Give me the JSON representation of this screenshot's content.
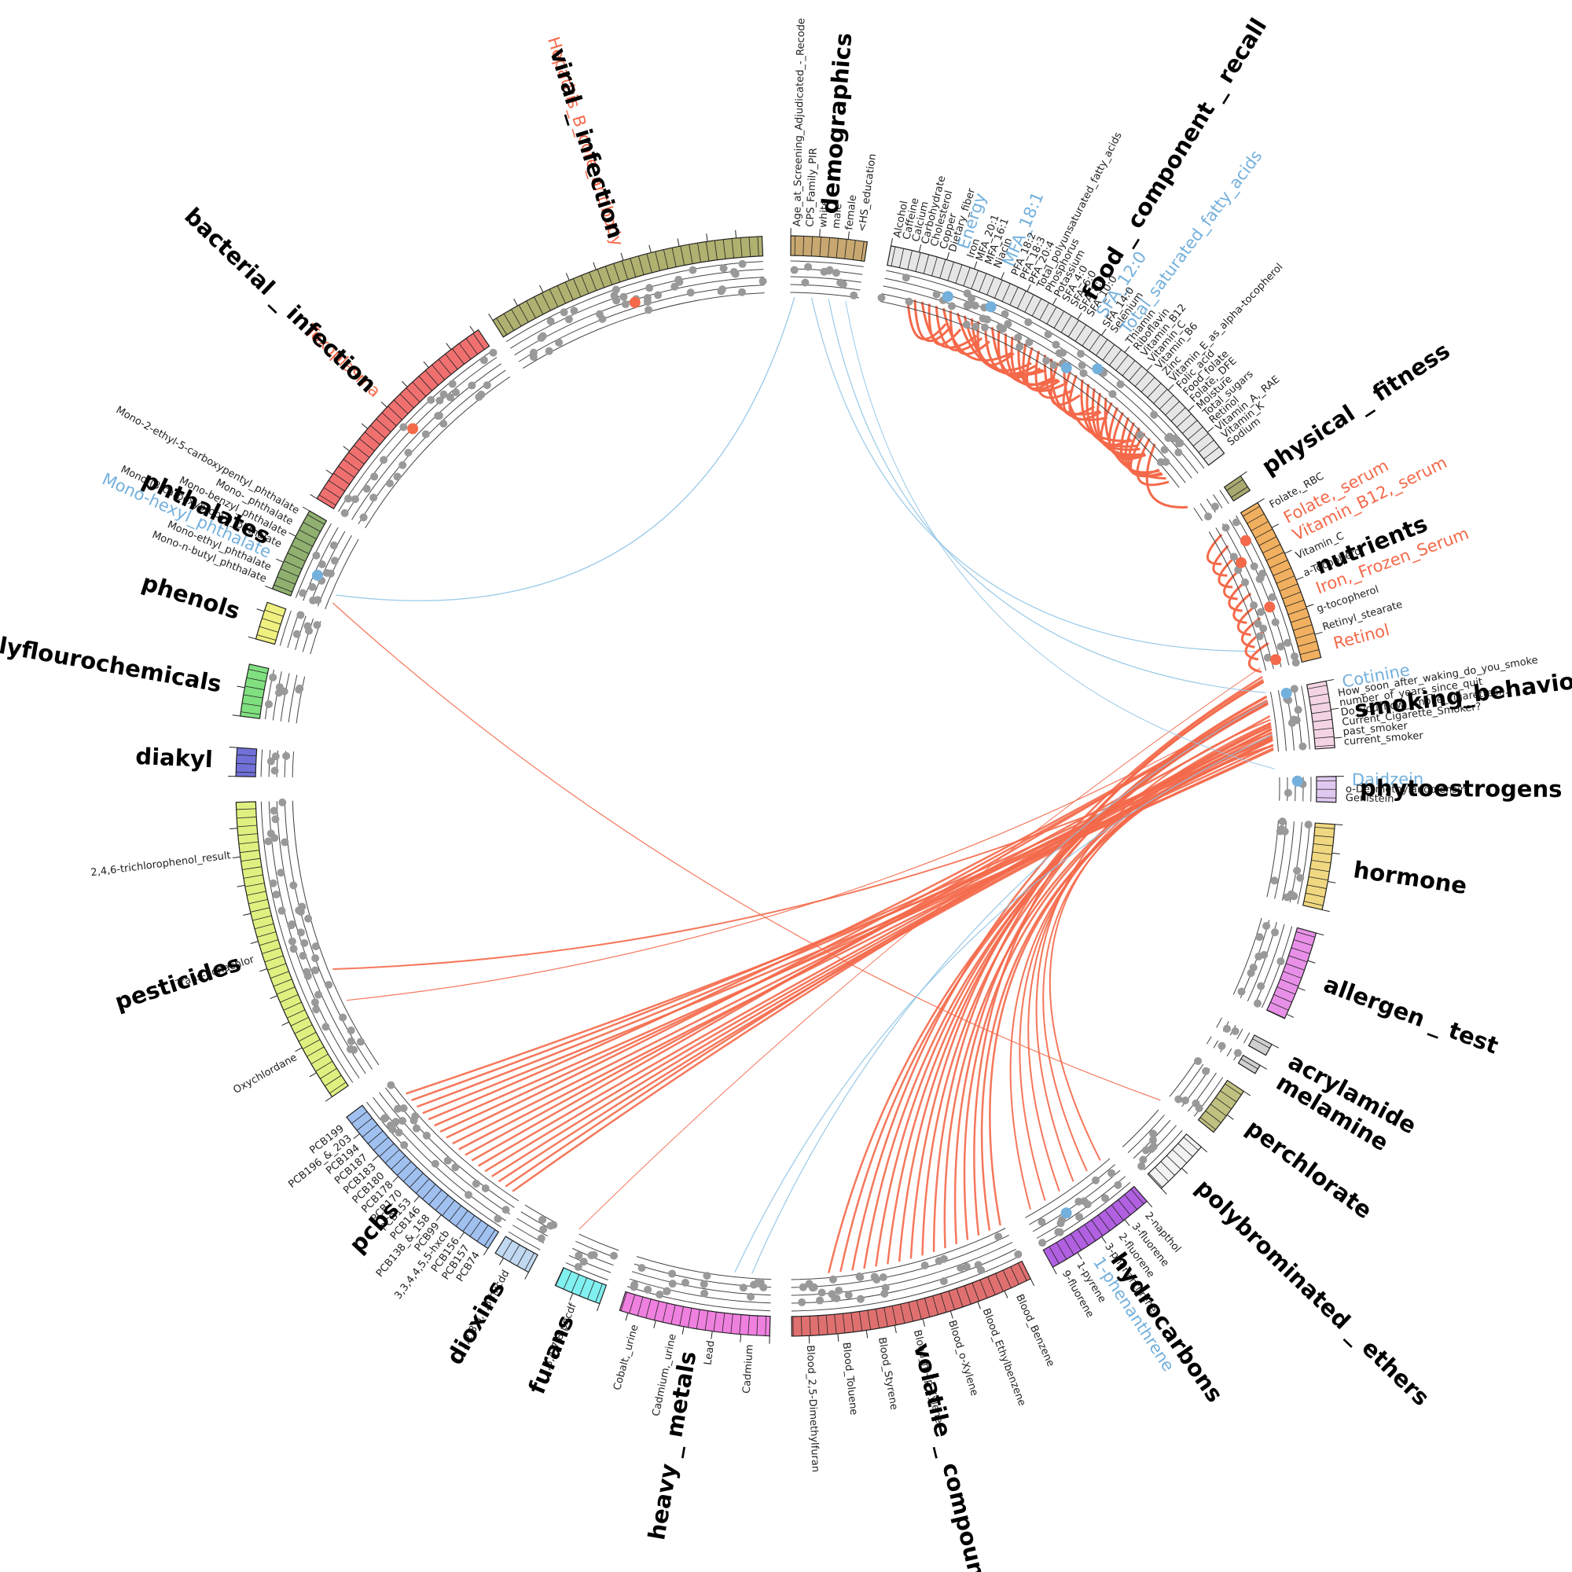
{
  "groups": [
    {
      "name": "demographics",
      "color": "#c8a870",
      "labels": [
        {
          "text": "Age_at_Screening_Adjudicated_-_Recode"
        },
        {
          "text": "CPS_Family_PIR"
        },
        {
          "text": "white"
        },
        {
          "text": "male"
        },
        {
          "text": "female"
        },
        {
          "text": "<HS_education"
        }
      ]
    },
    {
      "name": "food _ component _ recall",
      "color": "#e6e6e6",
      "labels": [
        {
          "text": "Alcohol"
        },
        {
          "text": "Caffeine"
        },
        {
          "text": "Calcium"
        },
        {
          "text": "Carbohydrate"
        },
        {
          "text": "Cholesterol"
        },
        {
          "text": "Copper"
        },
        {
          "text": "Dietary_fiber"
        },
        {
          "text": "Energy",
          "color": "#74b0dc"
        },
        {
          "text": "Iron"
        },
        {
          "text": "MFA_20:1"
        },
        {
          "text": "MFA_16:1"
        },
        {
          "text": "Niacin"
        },
        {
          "text": "MFA_18:1",
          "color": "#74b0dc"
        },
        {
          "text": "PFA_18:2"
        },
        {
          "text": "PFA_18:3"
        },
        {
          "text": "PFA_20:4"
        },
        {
          "text": "Total_polyunsaturated_fatty_acids"
        },
        {
          "text": "Phosphorus"
        },
        {
          "text": "Potassium"
        },
        {
          "text": "SFA_4:0"
        },
        {
          "text": "SFA_6:0"
        },
        {
          "text": "SFA_8:0"
        },
        {
          "text": "SFA_10:0"
        },
        {
          "text": "SFA_12:0",
          "color": "#74b0dc"
        },
        {
          "text": "SFA_14:0"
        },
        {
          "text": "Selenium"
        },
        {
          "text": "Total_saturated_fatty_acids",
          "color": "#74b0dc"
        },
        {
          "text": "Thiamin"
        },
        {
          "text": "Riboflavin"
        },
        {
          "text": "Vitamin_B12"
        },
        {
          "text": "Vitamin_C"
        },
        {
          "text": "Vitamin_B6"
        },
        {
          "text": "Zinc"
        },
        {
          "text": "Vitamin_E_as_alpha-tocopherol"
        },
        {
          "text": "Folic_acid"
        },
        {
          "text": "Food_folate"
        },
        {
          "text": "Folate,_DFE"
        },
        {
          "text": "Moisture"
        },
        {
          "text": "Total_sugars"
        },
        {
          "text": "Retinol"
        },
        {
          "text": "Vitamin_A,_RAE"
        },
        {
          "text": "Vitamin_K"
        },
        {
          "text": "Sodium"
        }
      ]
    },
    {
      "name": "physical _ fitness",
      "color": "#a8a870",
      "labels": []
    },
    {
      "name": "nutrients",
      "color": "#f0b060",
      "labels": [
        {
          "text": "Folate,_RBC"
        },
        {
          "text": "Folate,_serum",
          "color": "#f4694a"
        },
        {
          "text": "Vitamin_B12,_serum",
          "color": "#f4694a"
        },
        {
          "text": "Vitamin_C"
        },
        {
          "text": "a-Tocopherol"
        },
        {
          "text": "Iron,_Frozen_Serum",
          "color": "#f4694a"
        },
        {
          "text": "g-tocopherol"
        },
        {
          "text": "Retinyl_stearate"
        },
        {
          "text": "Retinol",
          "color": "#f4694a"
        }
      ]
    },
    {
      "name": "smoking_behavior",
      "color": "#f4d4e4",
      "labels": [
        {
          "text": "Cotinine",
          "color": "#74b0dc"
        },
        {
          "text": "How_soon_after_waking_do_you_smoke"
        },
        {
          "text": "number_of_years_since_quit"
        },
        {
          "text": "Do_you_now_smoke_cigarettes..."
        },
        {
          "text": "Current_Cigarette_Smoker?"
        },
        {
          "text": "past_smoker"
        },
        {
          "text": "current_smoker"
        }
      ]
    },
    {
      "name": "phytoestrogens",
      "color": "#e0c8f0",
      "labels": [
        {
          "text": "Daidzein",
          "color": "#74b0dc"
        },
        {
          "text": "o-Desmethylangolensin"
        },
        {
          "text": "Genistein"
        }
      ]
    },
    {
      "name": "hormone",
      "color": "#f0d880",
      "labels": []
    },
    {
      "name": "allergen _ test",
      "color": "#e890e8",
      "labels": []
    },
    {
      "name": "acrylamide",
      "color": "#d0d0d0",
      "labels": []
    },
    {
      "name": "melamine",
      "color": "#d0d0d0",
      "labels": []
    },
    {
      "name": "perchlorate",
      "color": "#c0c080",
      "labels": []
    },
    {
      "name": "polybrominated _ ethers",
      "color": "#f2f2f2",
      "labels": []
    },
    {
      "name": "hydrocarbons",
      "color": "#b060e0",
      "labels": [
        {
          "text": "2-napthol"
        },
        {
          "text": "3-fluorene"
        },
        {
          "text": "2-fluorene"
        },
        {
          "text": "3-phenanthrene"
        },
        {
          "text": "1-phenanthrene",
          "color": "#74b0dc"
        },
        {
          "text": "1-pyrene"
        },
        {
          "text": "9-fluorene"
        }
      ]
    },
    {
      "name": "volatile _ compounds",
      "color": "#e07070",
      "labels": [
        {
          "text": "Blood_Benzene"
        },
        {
          "text": "Blood_Ethylbenzene"
        },
        {
          "text": "Blood_o-Xylene"
        },
        {
          "text": "Blood_m-/p-Xylene"
        },
        {
          "text": "Blood_Styrene"
        },
        {
          "text": "Blood_Toluene"
        },
        {
          "text": "Blood_2,5-Dimethylfuran"
        }
      ]
    },
    {
      "name": "heavy _ metals",
      "color": "#f080e0",
      "labels": [
        {
          "text": "Cadmium"
        },
        {
          "text": "Lead"
        },
        {
          "text": "Cadmium,_urine"
        },
        {
          "text": "Cobalt,_urine"
        }
      ]
    },
    {
      "name": "furans",
      "color": "#80f0f0",
      "labels": [
        {
          "text": "2,3,4,7,8-pncdf"
        }
      ]
    },
    {
      "name": "dioxins",
      "color": "#c0d8f0",
      "labels": [
        {
          "text": "1,2,3,6,7,8-hxcdd"
        }
      ]
    },
    {
      "name": "pcbs",
      "color": "#a0c0f0",
      "labels": [
        {
          "text": "PCB74"
        },
        {
          "text": "PCB157"
        },
        {
          "text": "PCB156"
        },
        {
          "text": "3,3,4,4,5,5-hxcb"
        },
        {
          "text": "PCB99"
        },
        {
          "text": "PCB138_&_158"
        },
        {
          "text": "PCB146"
        },
        {
          "text": "PCB153"
        },
        {
          "text": "PCB170"
        },
        {
          "text": "PCB178"
        },
        {
          "text": "PCB180"
        },
        {
          "text": "PCB183"
        },
        {
          "text": "PCB187"
        },
        {
          "text": "PCB194"
        },
        {
          "text": "PCB196_&_203"
        },
        {
          "text": "PCB199"
        }
      ]
    },
    {
      "name": "pesticides",
      "color": "#e0f080",
      "labels": [
        {
          "text": "Oxychlordane"
        },
        {
          "text": "Trans-nonachlor"
        },
        {
          "text": "2,4,6-trichlorophenol_result"
        }
      ]
    },
    {
      "name": "diakyl",
      "color": "#7070d8",
      "labels": []
    },
    {
      "name": "polyflourochemicals",
      "color": "#80e080",
      "labels": []
    },
    {
      "name": "phenols",
      "color": "#f0f080",
      "labels": []
    },
    {
      "name": "phthalates",
      "color": "#90b070",
      "labels": [
        {
          "text": "Mono-n-butyl_phthalate"
        },
        {
          "text": "Mono-ethyl_phthalate"
        },
        {
          "text": "Mono-hexyl_phthalate",
          "color": "#74b0dc"
        },
        {
          "text": "Mono-(3-carboxypropyl)_phthalate"
        },
        {
          "text": "Mono-benzyl_phthalate"
        },
        {
          "text": "Mono-_phthalate"
        },
        {
          "text": "Mono-2-ethyl-5-carboxypentyl_phthalate"
        }
      ]
    },
    {
      "name": "bacterial _ infection",
      "color": "#f07070",
      "labels": [
        {
          "text": "Toxoplasma",
          "color": "#f4694a"
        }
      ]
    },
    {
      "name": "viral _ infection",
      "color": "#b0b070",
      "labels": [
        {
          "text": "Hepatitis_B_core_antibody",
          "color": "#f4694a"
        }
      ]
    }
  ]
}
